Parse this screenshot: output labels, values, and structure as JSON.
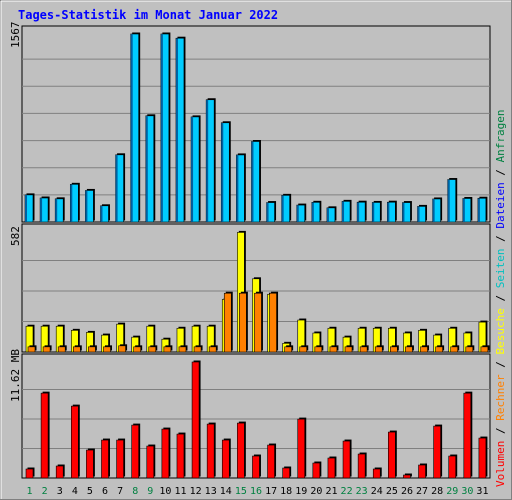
{
  "title": "Tages-Statistik im Monat Januar 2022",
  "colors": {
    "title": "#0000ff",
    "background": "#c0c0c0",
    "panel": "#c0c0c0",
    "grid": "#808080",
    "anfragen": "#00ccff",
    "dateien": "#0000ff",
    "seiten": "#00c0c0",
    "besuche": "#ffff00",
    "rechner": "#ff8000",
    "volumen": "#ff0000",
    "weekend_label": "#008040",
    "weekday_label": "#000000"
  },
  "right_legend": [
    {
      "text": "Volumen",
      "color": "#ff0000"
    },
    {
      "text": " / ",
      "color": "#000000"
    },
    {
      "text": "Rechner",
      "color": "#ff8000"
    },
    {
      "text": " / ",
      "color": "#000000"
    },
    {
      "text": "Besuche",
      "color": "#ffff00"
    },
    {
      "text": " / ",
      "color": "#000000"
    },
    {
      "text": "Seiten",
      "color": "#00c0c0"
    },
    {
      "text": " / ",
      "color": "#000000"
    },
    {
      "text": "Dateien",
      "color": "#0000ff"
    },
    {
      "text": " / ",
      "color": "#000000"
    },
    {
      "text": "Anfragen",
      "color": "#008040"
    }
  ],
  "chart_data": [
    {
      "type": "bar",
      "panel": "requests",
      "max_label": "1567",
      "ylim": [
        0,
        1567
      ],
      "categories": [
        "1",
        "2",
        "3",
        "4",
        "5",
        "6",
        "7",
        "8",
        "9",
        "10",
        "11",
        "12",
        "13",
        "14",
        "15",
        "16",
        "17",
        "18",
        "19",
        "20",
        "21",
        "22",
        "23",
        "24",
        "25",
        "26",
        "27",
        "28",
        "29",
        "30",
        "31"
      ],
      "weekend": [
        1,
        2,
        8,
        9,
        15,
        16,
        22,
        23,
        29,
        30
      ],
      "series": [
        {
          "name": "Anfragen",
          "values": [
            226,
            200,
            193,
            314,
            263,
            135,
            560,
            1567,
            885,
            1567,
            1532,
            876,
            1019,
            827,
            559,
            671,
            162,
            222,
            141,
            164,
            118,
            172,
            165,
            163,
            165,
            162,
            130,
            192,
            354,
            196,
            198
          ]
        },
        {
          "name": "Dateien",
          "values": [
            226,
            198,
            191,
            312,
            261,
            133,
            558,
            1565,
            883,
            1565,
            1530,
            874,
            1017,
            825,
            557,
            669,
            160,
            220,
            139,
            162,
            116,
            170,
            163,
            161,
            163,
            160,
            128,
            190,
            352,
            194,
            196
          ]
        }
      ]
    },
    {
      "type": "bar",
      "panel": "visits",
      "max_label": "582",
      "ylim": [
        0,
        582
      ],
      "series": [
        {
          "name": "Seiten",
          "values": [
            120,
            120,
            120,
            100,
            90,
            80,
            130,
            70,
            120,
            60,
            110,
            120,
            120,
            250,
            460,
            330,
            260,
            40,
            150,
            90,
            110,
            70,
            110,
            110,
            110,
            90,
            100,
            80,
            110,
            90,
            140
          ]
        },
        {
          "name": "Besuche",
          "values": [
            125,
            125,
            125,
            105,
            95,
            82,
            135,
            72,
            125,
            62,
            115,
            125,
            125,
            255,
            580,
            355,
            280,
            42,
            155,
            92,
            115,
            72,
            115,
            115,
            115,
            92,
            105,
            82,
            115,
            92,
            145
          ]
        },
        {
          "name": "Rechner",
          "values": [
            25,
            25,
            25,
            25,
            25,
            25,
            30,
            25,
            25,
            25,
            25,
            25,
            25,
            285,
            285,
            285,
            285,
            25,
            25,
            25,
            25,
            25,
            25,
            25,
            25,
            25,
            25,
            25,
            25,
            25,
            25
          ]
        }
      ]
    },
    {
      "type": "bar",
      "panel": "volume",
      "max_label": "11.62 MB",
      "ylim": [
        0,
        11.62
      ],
      "series": [
        {
          "name": "Volumen",
          "values": [
            0.9,
            8.5,
            1.2,
            7.2,
            2.8,
            3.8,
            3.8,
            5.3,
            3.2,
            4.9,
            4.4,
            11.62,
            5.4,
            3.8,
            5.5,
            2.2,
            3.3,
            1.0,
            5.9,
            1.5,
            2.0,
            3.7,
            2.4,
            0.9,
            4.6,
            0.3,
            1.3,
            5.2,
            2.2,
            8.5,
            4.0
          ]
        }
      ]
    }
  ]
}
